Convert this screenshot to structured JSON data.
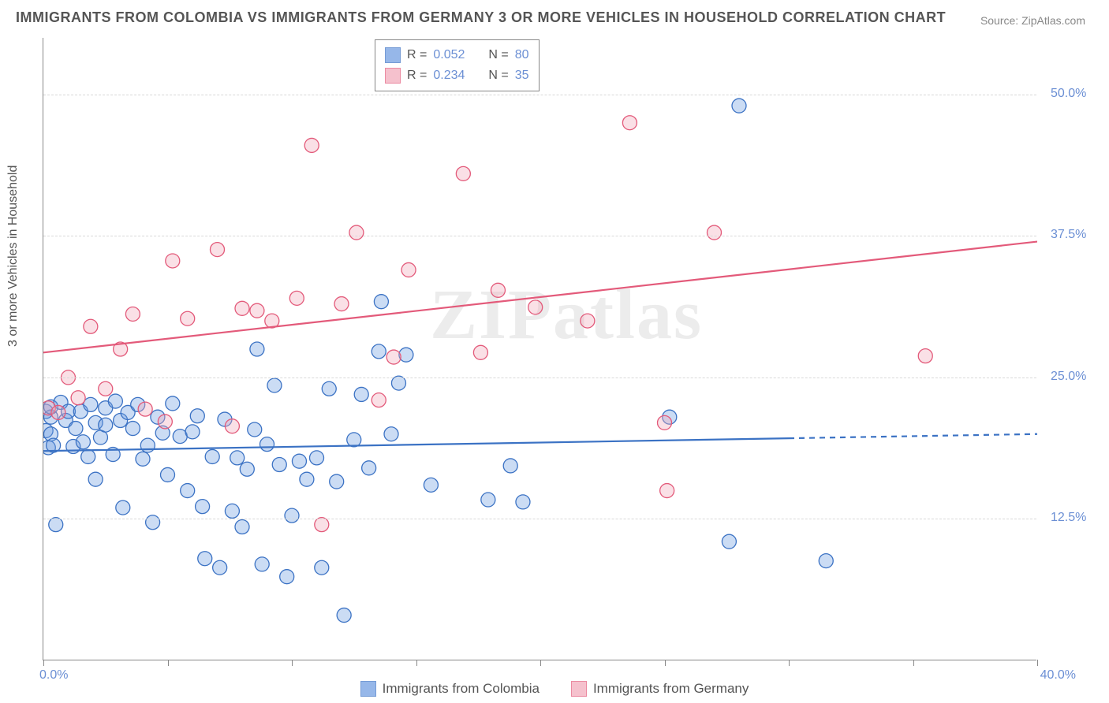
{
  "title": "IMMIGRANTS FROM COLOMBIA VS IMMIGRANTS FROM GERMANY 3 OR MORE VEHICLES IN HOUSEHOLD CORRELATION CHART",
  "source": "Source: ZipAtlas.com",
  "watermark": "ZIPatlas",
  "y_axis_label": "3 or more Vehicles in Household",
  "chart": {
    "type": "scatter",
    "background_color": "#ffffff",
    "grid_color": "#d8d8d8",
    "axis_color": "#888888",
    "tick_label_color": "#6b8fd4",
    "xlim": [
      0,
      40
    ],
    "ylim": [
      0,
      55
    ],
    "y_ticks": [
      12.5,
      25.0,
      37.5,
      50.0
    ],
    "y_tick_labels": [
      "12.5%",
      "25.0%",
      "37.5%",
      "50.0%"
    ],
    "x_tick_positions": [
      0,
      5,
      10,
      15,
      20,
      25,
      30,
      35,
      40
    ],
    "x_min_label": "0.0%",
    "x_max_label": "40.0%",
    "marker_radius": 9,
    "marker_fill_opacity": 0.35,
    "marker_stroke_width": 1.3,
    "line_width": 2.2,
    "series": [
      {
        "name": "Immigrants from Colombia",
        "color": "#6b9ae0",
        "stroke": "#3b72c4",
        "r": "0.052",
        "n": "80",
        "trend": {
          "y_at_xmin": 18.5,
          "y_at_xmax": 20.0,
          "solid_until_x": 30.0
        },
        "points": [
          [
            0.1,
            22.0
          ],
          [
            0.1,
            20.3
          ],
          [
            0.2,
            18.8
          ],
          [
            0.3,
            21.5
          ],
          [
            0.3,
            22.4
          ],
          [
            0.3,
            20.0
          ],
          [
            0.4,
            19.0
          ],
          [
            0.5,
            12.0
          ],
          [
            0.7,
            22.8
          ],
          [
            0.9,
            21.2
          ],
          [
            1.0,
            22.0
          ],
          [
            1.2,
            18.9
          ],
          [
            1.3,
            20.5
          ],
          [
            1.5,
            22.0
          ],
          [
            1.6,
            19.3
          ],
          [
            1.8,
            18.0
          ],
          [
            1.9,
            22.6
          ],
          [
            2.1,
            21.0
          ],
          [
            2.1,
            16.0
          ],
          [
            2.3,
            19.7
          ],
          [
            2.5,
            20.8
          ],
          [
            2.5,
            22.3
          ],
          [
            2.8,
            18.2
          ],
          [
            2.9,
            22.9
          ],
          [
            3.1,
            21.2
          ],
          [
            3.2,
            13.5
          ],
          [
            3.4,
            21.9
          ],
          [
            3.6,
            20.5
          ],
          [
            3.8,
            22.6
          ],
          [
            4.0,
            17.8
          ],
          [
            4.2,
            19.0
          ],
          [
            4.4,
            12.2
          ],
          [
            4.6,
            21.5
          ],
          [
            4.8,
            20.1
          ],
          [
            5.0,
            16.4
          ],
          [
            5.2,
            22.7
          ],
          [
            5.5,
            19.8
          ],
          [
            5.8,
            15.0
          ],
          [
            6.0,
            20.2
          ],
          [
            6.2,
            21.6
          ],
          [
            6.4,
            13.6
          ],
          [
            6.5,
            9.0
          ],
          [
            6.8,
            18.0
          ],
          [
            7.1,
            8.2
          ],
          [
            7.3,
            21.3
          ],
          [
            7.6,
            13.2
          ],
          [
            7.8,
            17.9
          ],
          [
            8.0,
            11.8
          ],
          [
            8.2,
            16.9
          ],
          [
            8.5,
            20.4
          ],
          [
            8.6,
            27.5
          ],
          [
            8.8,
            8.5
          ],
          [
            9.0,
            19.1
          ],
          [
            9.3,
            24.3
          ],
          [
            9.5,
            17.3
          ],
          [
            9.8,
            7.4
          ],
          [
            10.0,
            12.8
          ],
          [
            10.3,
            17.6
          ],
          [
            10.6,
            16.0
          ],
          [
            11.0,
            17.9
          ],
          [
            11.2,
            8.2
          ],
          [
            11.5,
            24.0
          ],
          [
            11.8,
            15.8
          ],
          [
            12.1,
            4.0
          ],
          [
            12.5,
            19.5
          ],
          [
            12.8,
            23.5
          ],
          [
            13.1,
            17.0
          ],
          [
            13.5,
            27.3
          ],
          [
            13.6,
            31.7
          ],
          [
            14.0,
            20.0
          ],
          [
            14.3,
            24.5
          ],
          [
            14.6,
            27.0
          ],
          [
            15.6,
            15.5
          ],
          [
            17.9,
            14.2
          ],
          [
            18.8,
            17.2
          ],
          [
            19.3,
            14.0
          ],
          [
            25.2,
            21.5
          ],
          [
            27.6,
            10.5
          ],
          [
            28.0,
            49.0
          ],
          [
            31.5,
            8.8
          ]
        ]
      },
      {
        "name": "Immigrants from Germany",
        "color": "#f2a7b8",
        "stroke": "#e35a7a",
        "r": "0.234",
        "n": "35",
        "trend": {
          "y_at_xmin": 27.2,
          "y_at_xmax": 37.0,
          "solid_until_x": 40.0
        },
        "points": [
          [
            0.2,
            22.3
          ],
          [
            0.6,
            21.9
          ],
          [
            1.0,
            25.0
          ],
          [
            1.4,
            23.2
          ],
          [
            1.9,
            29.5
          ],
          [
            2.5,
            24.0
          ],
          [
            3.1,
            27.5
          ],
          [
            3.6,
            30.6
          ],
          [
            4.1,
            22.2
          ],
          [
            4.9,
            21.1
          ],
          [
            5.2,
            35.3
          ],
          [
            5.8,
            30.2
          ],
          [
            7.0,
            36.3
          ],
          [
            7.6,
            20.7
          ],
          [
            8.0,
            31.1
          ],
          [
            8.6,
            30.9
          ],
          [
            9.2,
            30.0
          ],
          [
            10.2,
            32.0
          ],
          [
            10.8,
            45.5
          ],
          [
            11.2,
            12.0
          ],
          [
            12.0,
            31.5
          ],
          [
            12.6,
            37.8
          ],
          [
            13.5,
            23.0
          ],
          [
            14.1,
            26.8
          ],
          [
            14.7,
            34.5
          ],
          [
            16.9,
            43.0
          ],
          [
            17.6,
            27.2
          ],
          [
            18.3,
            32.7
          ],
          [
            19.8,
            31.2
          ],
          [
            21.9,
            30.0
          ],
          [
            23.6,
            47.5
          ],
          [
            25.0,
            21.0
          ],
          [
            25.1,
            15.0
          ],
          [
            27.0,
            37.8
          ],
          [
            35.5,
            26.9
          ]
        ]
      }
    ]
  },
  "stat_legend": {
    "r_label": "R =",
    "n_label": "N ="
  },
  "bottom_legend_labels": [
    "Immigrants from Colombia",
    "Immigrants from Germany"
  ]
}
